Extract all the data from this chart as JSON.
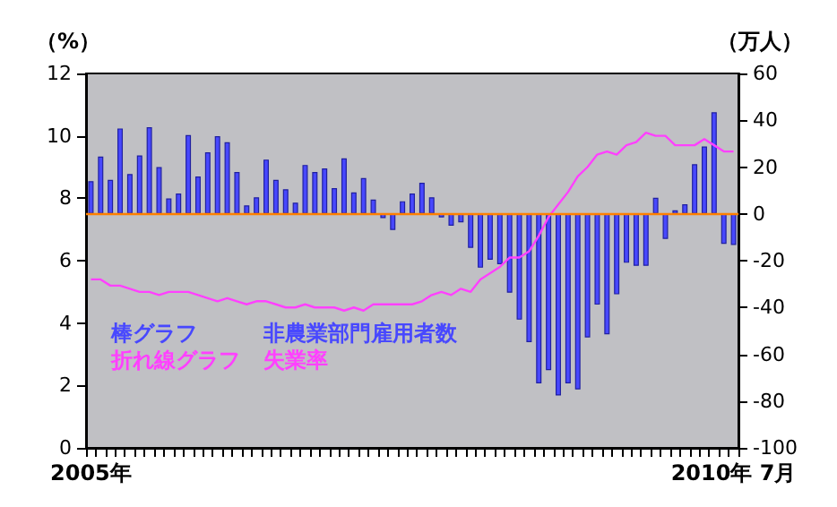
{
  "chart_data": {
    "type": "bar",
    "ylabel": "（%）",
    "y2label": "（万人）",
    "categories": [
      "2005年",
      null,
      null,
      null,
      null,
      null,
      null,
      null,
      null,
      null,
      null,
      null,
      null,
      null,
      null,
      null,
      null,
      null,
      null,
      null,
      null,
      null,
      null,
      null,
      null,
      null,
      null,
      null,
      null,
      null,
      null,
      null,
      null,
      null,
      null,
      null,
      null,
      null,
      null,
      null,
      null,
      null,
      null,
      null,
      null,
      null,
      null,
      null,
      null,
      null,
      null,
      null,
      null,
      null,
      null,
      null,
      null,
      null,
      null,
      null,
      null,
      null,
      null,
      null,
      null,
      null,
      "2010年 7月"
    ],
    "series": [
      {
        "name": "非農業部門雇用者数",
        "axis": "y2",
        "color": "#4848ff",
        "values": [
          14,
          24.5,
          14.5,
          36.5,
          17,
          25,
          37,
          20,
          6.6,
          8.7,
          33.7,
          16,
          26.3,
          33.2,
          30.6,
          17.9,
          3.6,
          7.1,
          23.2,
          14.5,
          10.5,
          4.8,
          20.9,
          17.9,
          19.4,
          11,
          23.7,
          9.2,
          15.3,
          6.1,
          -1.8,
          -6.9,
          5.4,
          8.7,
          13.3,
          7.1,
          -1.5,
          -5.1,
          -3.6,
          -14.5,
          -23,
          -19.6,
          -21.5,
          -33.7,
          -45.2,
          -54.8,
          -72.4,
          -66.8,
          -77.6,
          -72.4,
          -75,
          -52.8,
          -38.8,
          -51.5,
          -34.4,
          -20.9,
          -22.2,
          -22.2,
          6.9,
          -10.7,
          1.5,
          4.1,
          21.2,
          28.8,
          43.4,
          -12.8,
          -13.3
        ]
      },
      {
        "name": "失業率",
        "type": "line",
        "axis": "y",
        "color": "#ff40ff",
        "values": [
          5.4,
          5.4,
          5.2,
          5.2,
          5.1,
          5.0,
          5.0,
          4.9,
          5.0,
          5.0,
          5.0,
          4.9,
          4.8,
          4.7,
          4.8,
          4.7,
          4.6,
          4.7,
          4.7,
          4.6,
          4.5,
          4.5,
          4.6,
          4.5,
          4.5,
          4.5,
          4.4,
          4.5,
          4.4,
          4.6,
          4.6,
          4.6,
          4.6,
          4.6,
          4.7,
          4.9,
          5.0,
          4.9,
          5.1,
          5.0,
          5.4,
          5.6,
          5.8,
          6.1,
          6.1,
          6.3,
          6.8,
          7.4,
          7.8,
          8.2,
          8.7,
          9.0,
          9.4,
          9.5,
          9.4,
          9.7,
          9.8,
          10.1,
          10.0,
          10.0,
          9.7,
          9.7,
          9.7,
          9.9,
          9.7,
          9.5,
          9.5
        ]
      }
    ],
    "ylim": [
      0,
      12
    ],
    "yticks": [
      0,
      2,
      4,
      6,
      8,
      10,
      12
    ],
    "y2lim": [
      -100,
      60
    ],
    "y2ticks": [
      -100,
      -80,
      -60,
      -40,
      -20,
      0,
      20,
      40,
      60
    ],
    "ref_lines": [
      {
        "axis": "y2",
        "value": 0,
        "color": "#ff8000"
      }
    ],
    "annotations": [
      "棒グラフ",
      "折れ線グラフ"
    ],
    "grid": false,
    "legend": false,
    "marker": "none",
    "line_style": "solid"
  }
}
